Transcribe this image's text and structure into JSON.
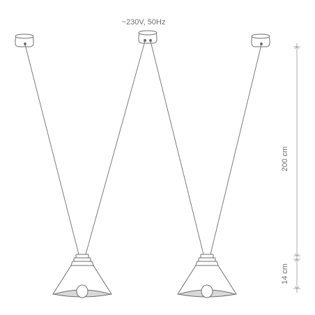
{
  "power_label": "~230V, 50Hz",
  "dimensions": {
    "cable_length_label": "200 cm",
    "shade_height_label": "14 cm"
  },
  "colors": {
    "line": "#6e6e6e",
    "dim_line": "#9a9a9a",
    "shade_fill": "#ffffff",
    "shade_inner": "#d8d8d8"
  }
}
